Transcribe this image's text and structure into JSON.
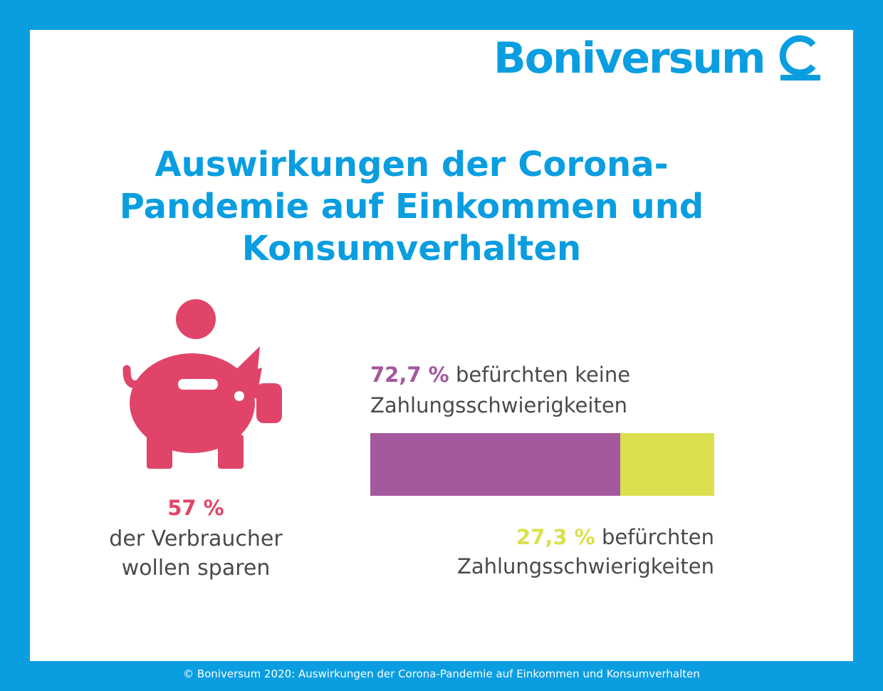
{
  "logo": {
    "text": "Boniversum"
  },
  "title": {
    "line1": "Auswirkungen der Corona-",
    "line2": "Pandemie auf Einkommen und",
    "line3": "Konsumverhalten"
  },
  "savings": {
    "percent": "57 %",
    "line1": "der Verbraucher",
    "line2": "wollen sparen"
  },
  "top_label": {
    "percent": "72,7 %",
    "text1": "befürchten keine",
    "text2": "Zahlungsschwierigkeiten"
  },
  "bottom_label": {
    "percent": "27,3 %",
    "text1": "befürchten",
    "text2": "Zahlungsschwierigkeiten"
  },
  "footer": "© Boniversum 2020: Auswirkungen der Corona-Pandemie auf Einkommen und Konsumverhalten",
  "colors": {
    "brand_blue": "#0a9ee0",
    "pink": "#e14469",
    "purple": "#a4589d",
    "yellow": "#dbe04e",
    "text_gray": "#4a4a4a"
  },
  "chart_data": {
    "type": "bar",
    "orientation": "horizontal-stacked",
    "categories": [
      "befürchten keine Zahlungsschwierigkeiten",
      "befürchten Zahlungsschwierigkeiten"
    ],
    "values": [
      72.7,
      27.3
    ],
    "unit": "%",
    "colors": [
      "#a4589d",
      "#dbe04e"
    ],
    "grid": false,
    "legend": "none",
    "extra_stat": {
      "value": 57,
      "unit": "%"
    }
  }
}
